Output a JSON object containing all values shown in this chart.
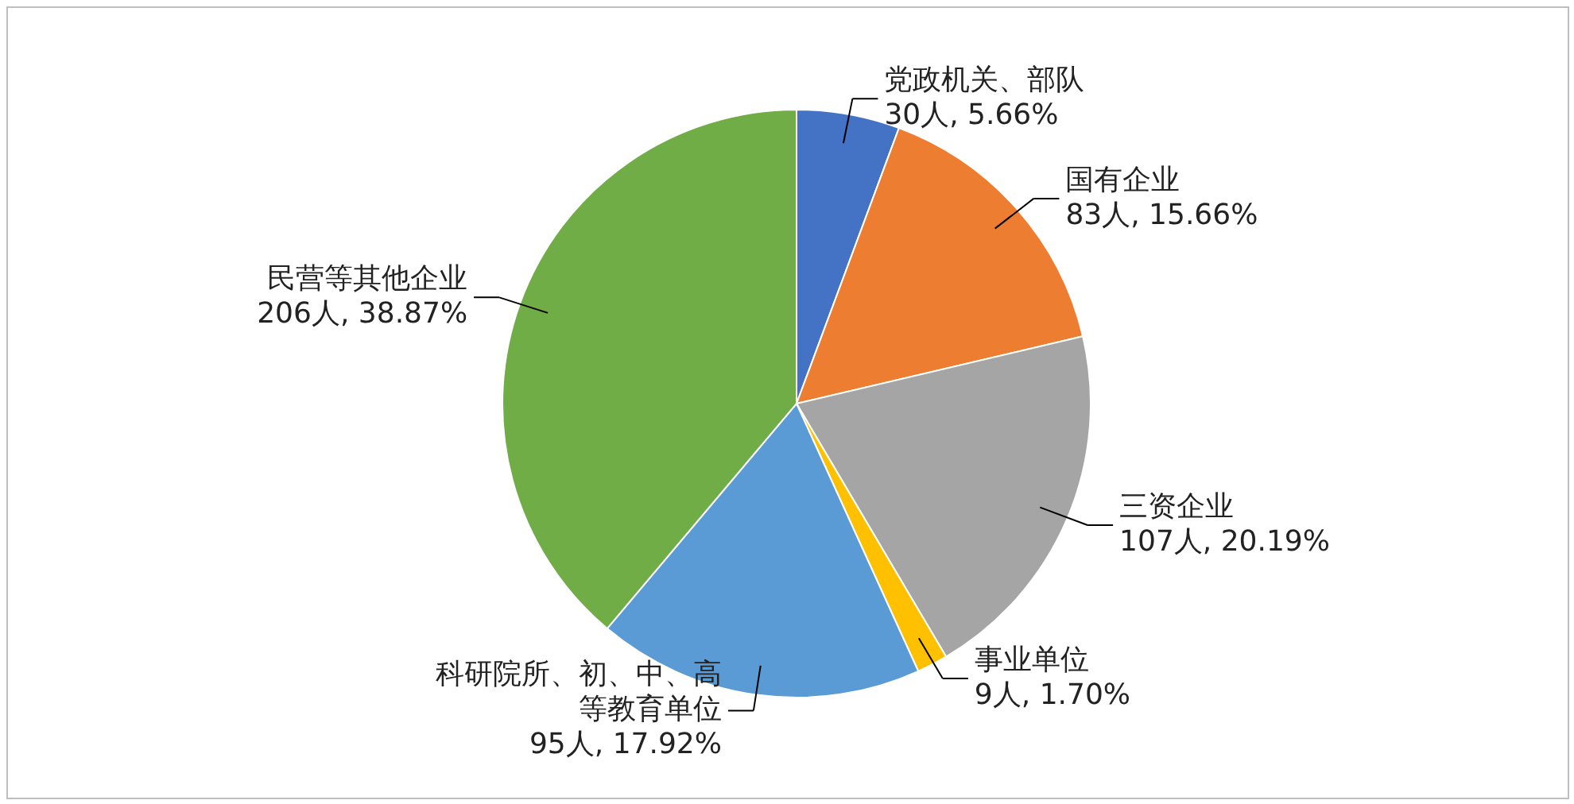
{
  "chart_data": {
    "type": "pie",
    "categories": [
      "党政机关、部队",
      "国有企业",
      "三资企业",
      "事业单位",
      "科研院所、初、中、高等教育单位",
      "民营等其他企业"
    ],
    "values": [
      30,
      83,
      107,
      9,
      95,
      206
    ],
    "value_labels": [
      "30人, 5.66%",
      "83人, 15.66%",
      "107人, 20.19%",
      "9人, 1.70%",
      "95人, 17.92%",
      "206人, 38.87%"
    ],
    "colors": [
      "#4472c4",
      "#ed7d31",
      "#a5a5a5",
      "#ffc000",
      "#5b9bd5",
      "#70ad47"
    ],
    "legend": false
  }
}
